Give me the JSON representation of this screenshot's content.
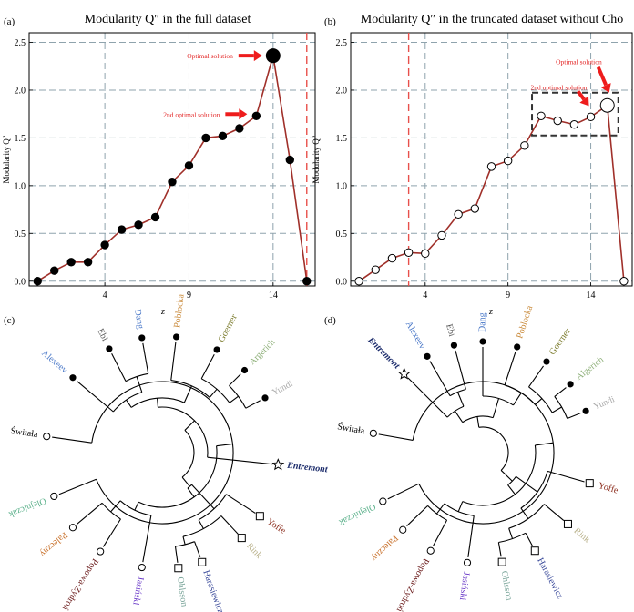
{
  "colors": {
    "line": "#a0302a",
    "vline": "#e8504b",
    "grid": "#8fa3ad",
    "arrow": "#ee1c1c",
    "box": "#333333"
  },
  "chart_data": [
    {
      "panel": "(a)",
      "type": "line",
      "title": "Modularity Q″ in the full dataset",
      "xlabel": "z",
      "ylabel": "Modularity Q″",
      "xlim": [
        -0.5,
        16.5
      ],
      "ylim": [
        -0.05,
        2.6
      ],
      "xticks": [
        4,
        9,
        14
      ],
      "yticks": [
        "0.0",
        "0.5",
        "1.0",
        "1.5",
        "2.0",
        "2.5"
      ],
      "x": [
        0,
        1,
        2,
        3,
        4,
        5,
        6,
        7,
        8,
        9,
        10,
        11,
        12,
        13,
        14,
        15,
        16
      ],
      "values": [
        0.0,
        0.11,
        0.2,
        0.2,
        0.38,
        0.54,
        0.59,
        0.67,
        1.04,
        1.21,
        1.5,
        1.52,
        1.6,
        1.73,
        2.36,
        1.27,
        0.0
      ],
      "marker_fill": "#000000",
      "highlight_index": 14,
      "vline_x": 16,
      "annotations": [
        {
          "text": "Optimal solution",
          "at_index": 14
        },
        {
          "text": "2nd optimal solution",
          "at_index": 13
        }
      ]
    },
    {
      "panel": "(b)",
      "type": "line",
      "title": "Modularity Q″ in the truncated dataset without Cho",
      "xlabel": "z",
      "ylabel": "Modularity Q″",
      "xlim": [
        -0.5,
        16.5
      ],
      "ylim": [
        -0.05,
        2.6
      ],
      "xticks": [
        4,
        9,
        14
      ],
      "yticks": [
        "0.0",
        "0.5",
        "1.0",
        "1.5",
        "2.0",
        "2.5"
      ],
      "x": [
        0,
        1,
        2,
        3,
        4,
        5,
        6,
        7,
        8,
        9,
        10,
        11,
        12,
        13,
        14,
        15,
        16
      ],
      "values": [
        0.0,
        0.12,
        0.24,
        0.3,
        0.29,
        0.48,
        0.7,
        0.76,
        1.2,
        1.26,
        1.42,
        1.73,
        1.68,
        1.64,
        1.72,
        1.84,
        0.0
      ],
      "marker_fill": "#ffffff",
      "highlight_index": 15,
      "vline_x": 3,
      "box_indices": [
        11,
        15
      ],
      "annotations": [
        {
          "text": "Optimal solution",
          "at_index": 15
        },
        {
          "text": "2nd optimal solution",
          "at_index": 14
        }
      ]
    }
  ],
  "dendrograms": [
    {
      "panel": "(c)",
      "leaves": [
        {
          "name": "Alexeev",
          "color": "#4a78c8",
          "marker": "dot"
        },
        {
          "name": "Ebi",
          "color": "#555555",
          "marker": "dot"
        },
        {
          "name": "Dang",
          "color": "#4a78c8",
          "marker": "dot"
        },
        {
          "name": "Poblocka",
          "color": "#c98a3a",
          "marker": "dot"
        },
        {
          "name": "Goerner",
          "color": "#7a7a2a",
          "marker": "dot"
        },
        {
          "name": "Argerich",
          "color": "#8fb07a",
          "marker": "dot"
        },
        {
          "name": "Yundi",
          "color": "#aaaaaa",
          "marker": "dot"
        },
        {
          "name": "Entremont",
          "color": "#1a2a6a",
          "marker": "star"
        },
        {
          "name": "Yoffe",
          "color": "#8a2a1a",
          "marker": "square"
        },
        {
          "name": "Rink",
          "color": "#b8b089",
          "marker": "square"
        },
        {
          "name": "Harasiewicz",
          "color": "#3a4a9a",
          "marker": "square"
        },
        {
          "name": "Ohlsson",
          "color": "#7aa59a",
          "marker": "square"
        },
        {
          "name": "Jasiński",
          "color": "#6a3ac8",
          "marker": "circle"
        },
        {
          "name": "Popowa-Zydroń",
          "color": "#6a1a1a",
          "marker": "circle"
        },
        {
          "name": "Paleczny",
          "color": "#c8702a",
          "marker": "circle"
        },
        {
          "name": "Olejniczak",
          "color": "#5ab08a",
          "marker": "circle"
        },
        {
          "name": "Świtała",
          "color": "#000000",
          "marker": "circle"
        }
      ]
    },
    {
      "panel": "(d)",
      "leaves": [
        {
          "name": "Entremont",
          "color": "#1a2a6a",
          "marker": "star"
        },
        {
          "name": "Alexeev",
          "color": "#4a78c8",
          "marker": "dot"
        },
        {
          "name": "Ebi",
          "color": "#555555",
          "marker": "dot"
        },
        {
          "name": "Dang",
          "color": "#4a78c8",
          "marker": "dot"
        },
        {
          "name": "Poblocka",
          "color": "#c98a3a",
          "marker": "dot"
        },
        {
          "name": "Goerner",
          "color": "#7a7a2a",
          "marker": "dot"
        },
        {
          "name": "Algerich",
          "color": "#8fb07a",
          "marker": "dot"
        },
        {
          "name": "Yundi",
          "color": "#aaaaaa",
          "marker": "dot"
        },
        {
          "name": "Yoffe",
          "color": "#8a2a1a",
          "marker": "square"
        },
        {
          "name": "Rink",
          "color": "#b8b089",
          "marker": "square"
        },
        {
          "name": "Harasiewicz",
          "color": "#3a4a9a",
          "marker": "square"
        },
        {
          "name": "Ohlsson",
          "color": "#7aa59a",
          "marker": "square"
        },
        {
          "name": "Jasiński",
          "color": "#6a3ac8",
          "marker": "circle"
        },
        {
          "name": "Popowa-Zydroń",
          "color": "#6a1a1a",
          "marker": "circle"
        },
        {
          "name": "Paleczny",
          "color": "#c8702a",
          "marker": "circle"
        },
        {
          "name": "Olejniczak",
          "color": "#5ab08a",
          "marker": "circle"
        },
        {
          "name": "Świtała",
          "color": "#000000",
          "marker": "circle"
        }
      ]
    }
  ]
}
